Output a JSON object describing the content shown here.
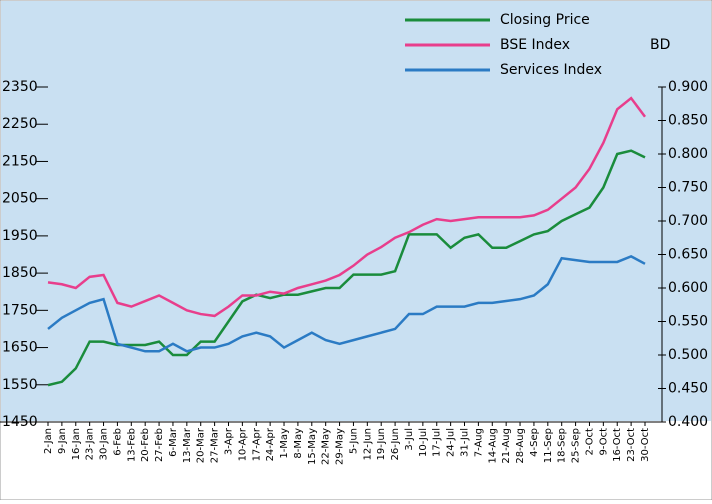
{
  "chart_data": {
    "type": "line",
    "y2label": "BD",
    "categories": [
      "2-Jan",
      "9-Jan",
      "16-Jan",
      "23-Jan",
      "30-Jan",
      "6-Feb",
      "13-Feb",
      "20-Feb",
      "27-Feb",
      "6-Mar",
      "13-Mar",
      "20-Mar",
      "27-Mar",
      "3-Apr",
      "10-Apr",
      "17-Apr",
      "24-Apr",
      "1-May",
      "8-May",
      "15-May",
      "22-May",
      "29-May",
      "5-Jun",
      "12-Jun",
      "19-Jun",
      "26-Jun",
      "3-Jul",
      "10-Jul",
      "17-Jul",
      "24-Jul",
      "31-Jul",
      "7-Aug",
      "14-Aug",
      "21-Aug",
      "28-Aug",
      "4-Sep",
      "11-Sep",
      "18-Sep",
      "25-Sep",
      "2-Oct",
      "9-Oct",
      "16-Oct",
      "23-Oct",
      "30-Oct"
    ],
    "series": [
      {
        "name": "Closing Price",
        "color": "#1a8c3c",
        "axis": "y2",
        "values": [
          0.455,
          0.46,
          0.48,
          0.52,
          0.52,
          0.515,
          0.515,
          0.515,
          0.52,
          0.5,
          0.5,
          0.52,
          0.52,
          0.55,
          0.58,
          0.59,
          0.585,
          0.59,
          0.59,
          0.595,
          0.6,
          0.6,
          0.62,
          0.62,
          0.62,
          0.625,
          0.68,
          0.68,
          0.68,
          0.66,
          0.675,
          0.68,
          0.66,
          0.66,
          0.67,
          0.68,
          0.685,
          0.7,
          0.71,
          0.72,
          0.75,
          0.8,
          0.805,
          0.795
        ]
      },
      {
        "name": "BSE Index",
        "color": "#e83e8c",
        "values": [
          1825,
          1820,
          1810,
          1840,
          1845,
          1770,
          1760,
          1775,
          1790,
          1770,
          1750,
          1740,
          1735,
          1760,
          1790,
          1790,
          1800,
          1795,
          1810,
          1820,
          1830,
          1845,
          1870,
          1900,
          1920,
          1945,
          1960,
          1980,
          1995,
          1990,
          1995,
          2000,
          2000,
          2000,
          2000,
          2005,
          2020,
          2050,
          2080,
          2130,
          2200,
          2290,
          2320,
          2270
        ]
      },
      {
        "name": "Services Index",
        "color": "#2b7bc4",
        "values": [
          1700,
          1730,
          1750,
          1770,
          1780,
          1660,
          1650,
          1640,
          1640,
          1660,
          1640,
          1650,
          1650,
          1660,
          1680,
          1690,
          1680,
          1650,
          1670,
          1690,
          1670,
          1660,
          1670,
          1680,
          1690,
          1700,
          1740,
          1740,
          1760,
          1760,
          1760,
          1770,
          1770,
          1775,
          1780,
          1790,
          1820,
          1890,
          1885,
          1880,
          1880,
          1880,
          1895,
          1875
        ]
      }
    ],
    "ylim": [
      1450,
      2350
    ],
    "yticks": [
      1450,
      1550,
      1650,
      1750,
      1850,
      1950,
      2050,
      2150,
      2250,
      2350
    ],
    "y2lim": [
      0.4,
      0.9
    ],
    "y2ticks": [
      {
        "value": 0.4,
        "label": "0.400"
      },
      {
        "value": 0.45,
        "label": "0.450"
      },
      {
        "value": 0.5,
        "label": "0.500"
      },
      {
        "value": 0.55,
        "label": "0.550"
      },
      {
        "value": 0.6,
        "label": "0.600"
      },
      {
        "value": 0.65,
        "label": "0.650"
      },
      {
        "value": 0.7,
        "label": "0.700"
      },
      {
        "value": 0.75,
        "label": "0.750"
      },
      {
        "value": 0.8,
        "label": "0.800"
      },
      {
        "value": 0.85,
        "label": "0.850"
      },
      {
        "value": 0.9,
        "label": "0.900"
      }
    ]
  }
}
